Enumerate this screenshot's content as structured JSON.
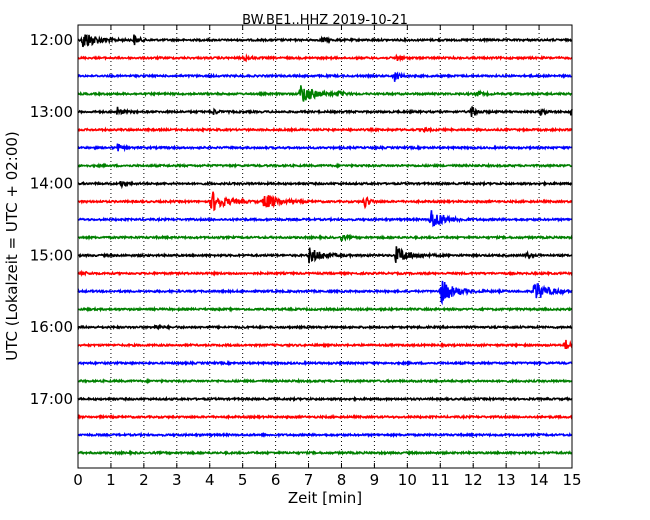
{
  "chart_data": {
    "type": "line",
    "title": "BW.BE1..HHZ 2019-10-21",
    "xlabel": "Zeit  [min]",
    "ylabel": "UTC (Lokalzeit = UTC + 02:00)",
    "xlim": [
      0,
      15
    ],
    "x_ticks": [
      "0",
      "1",
      "2",
      "3",
      "4",
      "5",
      "6",
      "7",
      "8",
      "9",
      "10",
      "11",
      "12",
      "13",
      "14",
      "15"
    ],
    "y_ticks": [
      "12:00",
      "13:00",
      "14:00",
      "15:00",
      "16:00",
      "17:00"
    ],
    "grid": "vertical dotted",
    "trace_interval_min": 15,
    "trace_colors": [
      "#000000",
      "#ff0000",
      "#0000ff",
      "#008000"
    ],
    "traces": [
      {
        "start": "12:00",
        "color": "#000000",
        "events": [
          {
            "t": 0.15,
            "a": 12
          },
          {
            "t": 1.7,
            "a": 7
          },
          {
            "t": 7.4,
            "a": 4
          }
        ]
      },
      {
        "start": "12:15",
        "color": "#ff0000",
        "events": [
          {
            "t": 5.05,
            "a": 4
          },
          {
            "t": 9.65,
            "a": 5
          }
        ]
      },
      {
        "start": "12:30",
        "color": "#0000ff",
        "events": [
          {
            "t": 9.6,
            "a": 8
          }
        ]
      },
      {
        "start": "12:45",
        "color": "#008000",
        "events": [
          {
            "t": 6.75,
            "a": 14
          },
          {
            "t": 7.9,
            "a": 4
          },
          {
            "t": 12.1,
            "a": 4
          }
        ]
      },
      {
        "start": "13:00",
        "color": "#000000",
        "events": [
          {
            "t": 1.2,
            "a": 6
          },
          {
            "t": 4.1,
            "a": 4
          },
          {
            "t": 11.95,
            "a": 9
          },
          {
            "t": 14.05,
            "a": 4
          },
          {
            "t": 14.95,
            "a": 4
          }
        ]
      },
      {
        "start": "13:15",
        "color": "#ff0000",
        "events": [
          {
            "t": 10.5,
            "a": 3
          }
        ]
      },
      {
        "start": "13:30",
        "color": "#0000ff",
        "events": [
          {
            "t": 1.2,
            "a": 5
          }
        ]
      },
      {
        "start": "13:45",
        "color": "#008000",
        "events": []
      },
      {
        "start": "14:00",
        "color": "#000000",
        "events": [
          {
            "t": 1.3,
            "a": 4
          }
        ]
      },
      {
        "start": "14:15",
        "color": "#ff0000",
        "events": [
          {
            "t": 4.05,
            "a": 14
          },
          {
            "t": 5.65,
            "a": 11
          },
          {
            "t": 8.7,
            "a": 9
          }
        ]
      },
      {
        "start": "14:30",
        "color": "#0000ff",
        "events": [
          {
            "t": 10.7,
            "a": 14
          }
        ]
      },
      {
        "start": "14:45",
        "color": "#008000",
        "events": [
          {
            "t": 8.0,
            "a": 4
          }
        ]
      },
      {
        "start": "15:00",
        "color": "#000000",
        "events": [
          {
            "t": 7.0,
            "a": 10
          },
          {
            "t": 9.65,
            "a": 11
          },
          {
            "t": 13.6,
            "a": 4
          }
        ]
      },
      {
        "start": "15:15",
        "color": "#ff0000",
        "events": [
          {
            "t": 0.1,
            "a": 3
          }
        ]
      },
      {
        "start": "15:30",
        "color": "#0000ff",
        "events": [
          {
            "t": 11.0,
            "a": 16
          },
          {
            "t": 13.85,
            "a": 13
          }
        ]
      },
      {
        "start": "15:45",
        "color": "#008000",
        "events": []
      },
      {
        "start": "16:00",
        "color": "#000000",
        "events": [
          {
            "t": 2.35,
            "a": 4
          }
        ]
      },
      {
        "start": "16:15",
        "color": "#ff0000",
        "events": [
          {
            "t": 14.8,
            "a": 7
          }
        ]
      },
      {
        "start": "16:30",
        "color": "#0000ff",
        "events": []
      },
      {
        "start": "16:45",
        "color": "#008000",
        "events": []
      },
      {
        "start": "17:00",
        "color": "#000000",
        "events": []
      },
      {
        "start": "17:15",
        "color": "#ff0000",
        "events": []
      },
      {
        "start": "17:30",
        "color": "#0000ff",
        "events": []
      },
      {
        "start": "17:45",
        "color": "#008000",
        "events": []
      }
    ]
  }
}
